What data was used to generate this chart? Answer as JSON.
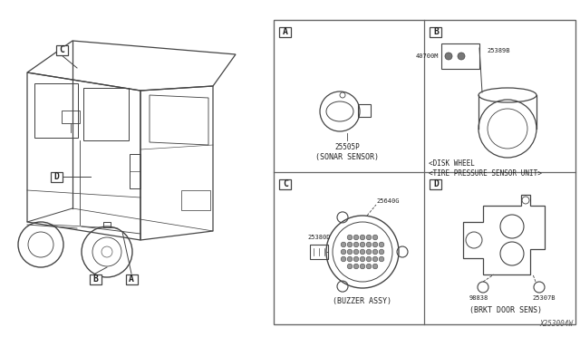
{
  "bg_color": "#ffffff",
  "line_color": "#444444",
  "border_color": "#666666",
  "text_color": "#222222",
  "fig_width": 6.4,
  "fig_height": 3.72,
  "dpi": 100,
  "watermark": "X253004W",
  "panel_A_label": "A",
  "panel_B_label": "B",
  "panel_C_label": "C",
  "panel_D_label": "D",
  "panel_A_part1": "25505P",
  "panel_A_caption": "(SONAR SENSOR)",
  "panel_B_part1": "40700M",
  "panel_B_part2": "25389B",
  "panel_B_cap1": "<DISK WHEEL",
  "panel_B_cap2": "<TIRE PRESSURE SENSOR UNIT>",
  "panel_C_part1": "25380D",
  "panel_C_part2": "25640G",
  "panel_C_caption": "(BUZZER ASSY)",
  "panel_D_part1": "98838",
  "panel_D_part2": "25307B",
  "panel_D_caption": "(BRKT DOOR SENS)",
  "car_label_A": "A",
  "car_label_B": "B",
  "car_label_C": "C",
  "car_label_D": "D"
}
